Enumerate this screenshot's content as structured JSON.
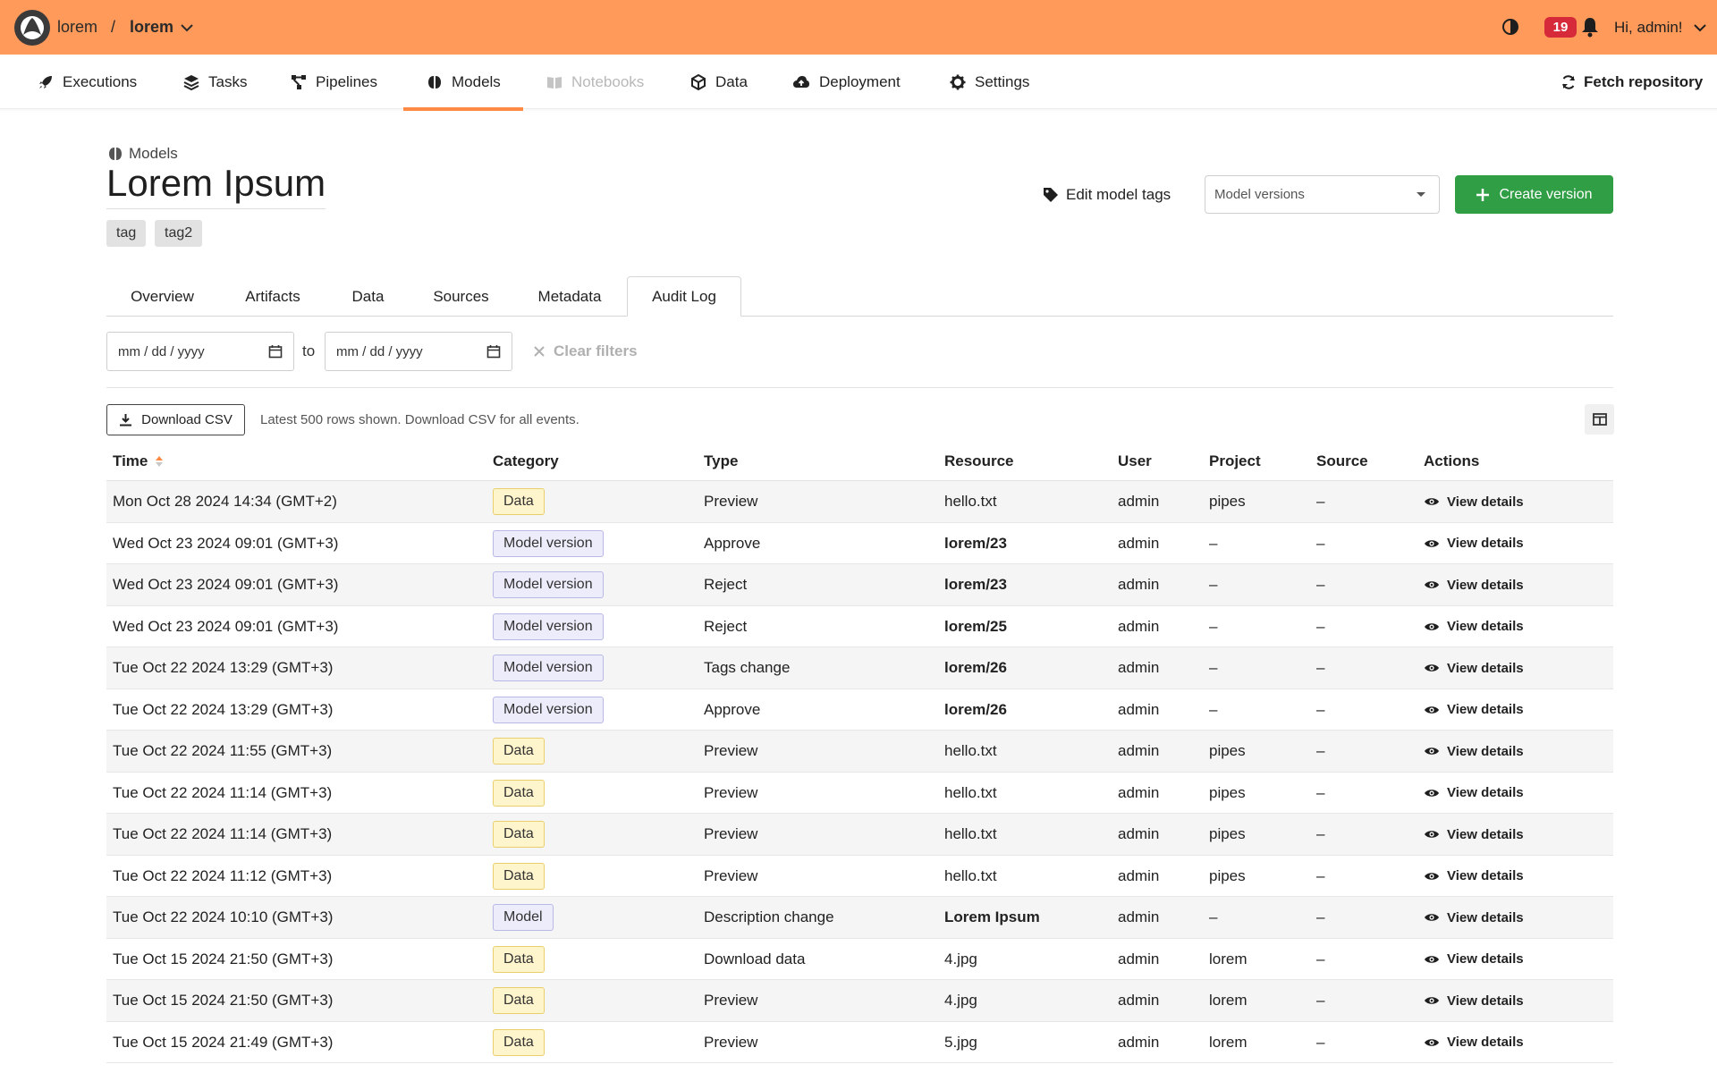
{
  "topbar": {
    "org": "lorem",
    "separator": "/",
    "project": "lorem",
    "notifications": "19",
    "greeting": "Hi, admin!"
  },
  "nav": {
    "items": [
      {
        "label": "Executions",
        "icon": "rocket-icon"
      },
      {
        "label": "Tasks",
        "icon": "layers-icon"
      },
      {
        "label": "Pipelines",
        "icon": "pipeline-icon"
      },
      {
        "label": "Models",
        "icon": "brain-icon"
      },
      {
        "label": "Notebooks",
        "icon": "book-icon"
      },
      {
        "label": "Data",
        "icon": "box-icon"
      },
      {
        "label": "Deployment",
        "icon": "cloud-upload-icon"
      },
      {
        "label": "Settings",
        "icon": "gear-icon"
      }
    ],
    "fetch_label": "Fetch repository"
  },
  "header": {
    "section": "Models",
    "title": "Lorem Ipsum",
    "tags": [
      "tag",
      "tag2"
    ],
    "edit_tags_label": "Edit model tags",
    "version_select": "Model versions",
    "create_label": "Create version"
  },
  "tabs": [
    "Overview",
    "Artifacts",
    "Data",
    "Sources",
    "Metadata",
    "Audit Log"
  ],
  "filters": {
    "from_placeholder": "mm / dd / yyyy",
    "to_label": "to",
    "to_placeholder": "mm / dd / yyyy",
    "clear_label": "Clear filters"
  },
  "toolbar": {
    "csv_label": "Download CSV",
    "note": "Latest 500 rows shown. Download CSV for all events."
  },
  "table": {
    "headers": [
      "Time",
      "Category",
      "Type",
      "Resource",
      "User",
      "Project",
      "Source",
      "Actions"
    ],
    "action_label": "View details",
    "rows": [
      {
        "time": "Mon Oct 28 2024 14:34 (GMT+2)",
        "category": "Data",
        "type": "Preview",
        "resource": "hello.txt",
        "resource_bold": false,
        "user": "admin",
        "project": "pipes",
        "source": "–"
      },
      {
        "time": "Wed Oct 23 2024 09:01 (GMT+3)",
        "category": "Model version",
        "type": "Approve",
        "resource": "lorem/23",
        "resource_bold": true,
        "user": "admin",
        "project": "–",
        "source": "–"
      },
      {
        "time": "Wed Oct 23 2024 09:01 (GMT+3)",
        "category": "Model version",
        "type": "Reject",
        "resource": "lorem/23",
        "resource_bold": true,
        "user": "admin",
        "project": "–",
        "source": "–"
      },
      {
        "time": "Wed Oct 23 2024 09:01 (GMT+3)",
        "category": "Model version",
        "type": "Reject",
        "resource": "lorem/25",
        "resource_bold": true,
        "user": "admin",
        "project": "–",
        "source": "–"
      },
      {
        "time": "Tue Oct 22 2024 13:29 (GMT+3)",
        "category": "Model version",
        "type": "Tags change",
        "resource": "lorem/26",
        "resource_bold": true,
        "user": "admin",
        "project": "–",
        "source": "–"
      },
      {
        "time": "Tue Oct 22 2024 13:29 (GMT+3)",
        "category": "Model version",
        "type": "Approve",
        "resource": "lorem/26",
        "resource_bold": true,
        "user": "admin",
        "project": "–",
        "source": "–"
      },
      {
        "time": "Tue Oct 22 2024 11:55 (GMT+3)",
        "category": "Data",
        "type": "Preview",
        "resource": "hello.txt",
        "resource_bold": false,
        "user": "admin",
        "project": "pipes",
        "source": "–"
      },
      {
        "time": "Tue Oct 22 2024 11:14 (GMT+3)",
        "category": "Data",
        "type": "Preview",
        "resource": "hello.txt",
        "resource_bold": false,
        "user": "admin",
        "project": "pipes",
        "source": "–"
      },
      {
        "time": "Tue Oct 22 2024 11:14 (GMT+3)",
        "category": "Data",
        "type": "Preview",
        "resource": "hello.txt",
        "resource_bold": false,
        "user": "admin",
        "project": "pipes",
        "source": "–"
      },
      {
        "time": "Tue Oct 22 2024 11:12 (GMT+3)",
        "category": "Data",
        "type": "Preview",
        "resource": "hello.txt",
        "resource_bold": false,
        "user": "admin",
        "project": "pipes",
        "source": "–"
      },
      {
        "time": "Tue Oct 22 2024 10:10 (GMT+3)",
        "category": "Model",
        "type": "Description change",
        "resource": "Lorem Ipsum",
        "resource_bold": true,
        "user": "admin",
        "project": "–",
        "source": "–"
      },
      {
        "time": "Tue Oct 15 2024 21:50 (GMT+3)",
        "category": "Data",
        "type": "Download data",
        "resource": "4.jpg",
        "resource_bold": false,
        "user": "admin",
        "project": "lorem",
        "source": "–"
      },
      {
        "time": "Tue Oct 15 2024 21:50 (GMT+3)",
        "category": "Data",
        "type": "Preview",
        "resource": "4.jpg",
        "resource_bold": false,
        "user": "admin",
        "project": "lorem",
        "source": "–"
      },
      {
        "time": "Tue Oct 15 2024 21:49 (GMT+3)",
        "category": "Data",
        "type": "Preview",
        "resource": "5.jpg",
        "resource_bold": false,
        "user": "admin",
        "project": "lorem",
        "source": "–"
      }
    ]
  },
  "colors": {
    "topbar": "#ff9a5a",
    "accent": "#ff8a45",
    "create_button": "#2f9e44",
    "badge_red": "#d6293a"
  }
}
